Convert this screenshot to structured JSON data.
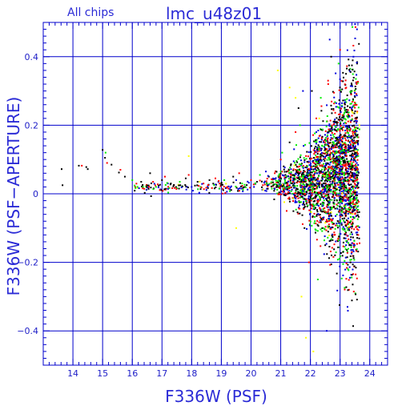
{
  "chart_data": {
    "type": "scatter",
    "title": "lmc_u48z01",
    "subtitle": "All chips",
    "xlabel": "F336W (PSF)",
    "ylabel": "F336W (PSF−APERTURE)",
    "xlim": [
      13.0,
      24.6
    ],
    "ylim": [
      -0.5,
      0.5
    ],
    "x_ticks": [
      14,
      15,
      16,
      17,
      18,
      19,
      20,
      21,
      22,
      23,
      24
    ],
    "y_ticks": [
      -0.4,
      -0.2,
      0,
      0.2,
      0.4
    ],
    "y_tick_labels": [
      "−0.4",
      "−0.2",
      "0",
      "0.2",
      "0.4"
    ],
    "grid": true,
    "colors": {
      "axis": "#0000cc",
      "grid": "#0000cc",
      "text": "#2b2bd6"
    },
    "series": [
      {
        "color": "#000000",
        "points": [
          [
            13.62,
            0.072
          ],
          [
            13.65,
            0.025
          ],
          [
            14.2,
            0.082
          ],
          [
            14.45,
            0.078
          ],
          [
            14.5,
            0.072
          ],
          [
            15.0,
            0.128
          ],
          [
            15.08,
            0.105
          ],
          [
            15.3,
            0.085
          ],
          [
            15.55,
            0.062
          ],
          [
            15.75,
            0.05
          ],
          [
            16.3,
            0.035
          ],
          [
            16.6,
            0.06
          ],
          [
            17.0,
            0.04
          ],
          [
            17.3,
            0.03
          ],
          [
            17.8,
            0.045
          ],
          [
            18.2,
            0.035
          ],
          [
            18.6,
            0.04
          ],
          [
            19.0,
            0.03
          ],
          [
            19.4,
            0.05
          ],
          [
            19.8,
            0.02
          ],
          [
            20.2,
            0.035
          ],
          [
            20.6,
            0.05
          ],
          [
            20.9,
            0.02
          ],
          [
            21.1,
            0.08
          ],
          [
            21.3,
            0.15
          ],
          [
            21.6,
            0.25
          ],
          [
            21.8,
            -0.1
          ],
          [
            22.05,
            0.3
          ],
          [
            22.3,
            0.1
          ],
          [
            22.5,
            -0.15
          ],
          [
            22.7,
            0.4
          ],
          [
            22.9,
            0.2
          ],
          [
            23.05,
            -0.06
          ],
          [
            23.2,
            0.35
          ],
          [
            23.35,
            -0.2
          ],
          [
            23.5,
            0.12
          ]
        ]
      },
      {
        "color": "#ff0000",
        "points": [
          [
            14.3,
            0.082
          ],
          [
            15.15,
            0.09
          ],
          [
            15.6,
            0.07
          ],
          [
            16.1,
            0.02
          ],
          [
            16.7,
            0.035
          ],
          [
            17.1,
            0.05
          ],
          [
            17.4,
            0.025
          ],
          [
            17.9,
            0.055
          ],
          [
            18.4,
            0.03
          ],
          [
            18.8,
            0.045
          ],
          [
            19.2,
            0.02
          ],
          [
            19.6,
            0.06
          ],
          [
            20.0,
            0.04
          ],
          [
            20.4,
            0.025
          ],
          [
            20.8,
            0.06
          ],
          [
            21.0,
            0.1
          ],
          [
            21.2,
            -0.05
          ],
          [
            21.5,
            0.18
          ],
          [
            21.7,
            0.05
          ],
          [
            21.95,
            -0.2
          ],
          [
            22.2,
            0.22
          ],
          [
            22.45,
            0.0
          ],
          [
            22.6,
            0.32
          ],
          [
            22.8,
            -0.12
          ],
          [
            23.0,
            0.42
          ],
          [
            23.1,
            0.06
          ],
          [
            23.3,
            -0.28
          ],
          [
            23.45,
            0.18
          ]
        ]
      },
      {
        "color": "#00ee00",
        "points": [
          [
            15.1,
            0.12
          ],
          [
            16.0,
            0.04
          ],
          [
            16.8,
            0.02
          ],
          [
            17.6,
            0.035
          ],
          [
            18.3,
            0.02
          ],
          [
            19.1,
            0.04
          ],
          [
            19.7,
            0.03
          ],
          [
            20.3,
            0.055
          ],
          [
            20.7,
            0.015
          ],
          [
            21.05,
            0.12
          ],
          [
            21.4,
            0.0
          ],
          [
            21.65,
            0.2
          ],
          [
            21.9,
            0.08
          ],
          [
            22.15,
            -0.08
          ],
          [
            22.35,
            0.28
          ],
          [
            22.55,
            0.12
          ],
          [
            22.75,
            -0.04
          ],
          [
            22.95,
            0.38
          ],
          [
            23.15,
            0.1
          ],
          [
            23.4,
            0.3
          ],
          [
            22.25,
            -0.25
          ]
        ]
      },
      {
        "color": "#0000dd",
        "points": [
          [
            17.2,
            0.03
          ],
          [
            18.0,
            0.02
          ],
          [
            18.9,
            0.035
          ],
          [
            19.5,
            0.04
          ],
          [
            20.1,
            0.02
          ],
          [
            20.5,
            0.065
          ],
          [
            21.15,
            0.03
          ],
          [
            21.45,
            0.13
          ],
          [
            21.75,
            0.3
          ],
          [
            22.0,
            0.0
          ],
          [
            22.2,
            0.18
          ],
          [
            22.4,
            -0.1
          ],
          [
            22.65,
            0.45
          ],
          [
            22.85,
            0.05
          ],
          [
            23.0,
            0.25
          ],
          [
            23.2,
            -0.15
          ],
          [
            23.3,
            0.08
          ],
          [
            23.45,
            0.4
          ],
          [
            22.55,
            -0.4
          ],
          [
            23.25,
            -0.33
          ]
        ]
      },
      {
        "color": "#ffff00",
        "points": [
          [
            17.9,
            0.11
          ],
          [
            19.5,
            -0.1
          ],
          [
            20.9,
            0.36
          ],
          [
            21.3,
            0.31
          ],
          [
            21.5,
            0.28
          ],
          [
            21.7,
            -0.3
          ],
          [
            21.85,
            -0.42
          ],
          [
            22.1,
            -0.46
          ],
          [
            22.3,
            0.22
          ],
          [
            22.6,
            -0.1
          ],
          [
            23.4,
            0.24
          ],
          [
            23.65,
            0.2
          ]
        ]
      }
    ]
  }
}
